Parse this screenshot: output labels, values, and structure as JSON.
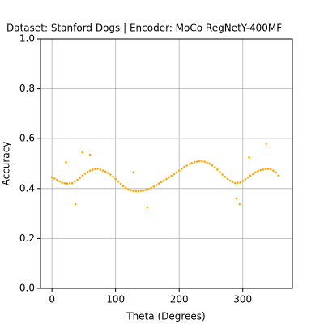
{
  "chart_data": {
    "type": "scatter",
    "title": "Dataset: Stanford Dogs | Encoder: MoCo RegNetY-400MF",
    "x_label": "Theta (Degrees)",
    "y_label": "Accuracy",
    "xlim": [
      -18,
      378
    ],
    "ylim": [
      0,
      1
    ],
    "xticks": [
      0,
      100,
      200,
      300
    ],
    "yticks": [
      {
        "value": 0,
        "label": "0.0"
      },
      {
        "value": 0.2,
        "label": "0.2"
      },
      {
        "value": 0.4,
        "label": "0.4"
      },
      {
        "value": 0.6,
        "label": "0.6"
      },
      {
        "value": 0.8,
        "label": "0.8"
      },
      {
        "value": 1,
        "label": "1.0"
      }
    ],
    "grid": true,
    "series": [
      {
        "color": "#ffa500",
        "x": [
          0,
          4,
          8,
          12,
          16,
          20,
          24,
          28,
          32,
          36,
          40,
          44,
          48,
          52,
          56,
          60,
          64,
          68,
          72,
          76,
          80,
          84,
          88,
          92,
          96,
          100,
          104,
          108,
          112,
          116,
          120,
          124,
          128,
          132,
          136,
          140,
          144,
          148,
          152,
          156,
          160,
          164,
          168,
          172,
          176,
          180,
          184,
          188,
          192,
          196,
          200,
          204,
          208,
          212,
          216,
          220,
          224,
          228,
          232,
          236,
          240,
          244,
          248,
          252,
          256,
          260,
          264,
          268,
          272,
          276,
          280,
          284,
          288,
          292,
          296,
          300,
          304,
          308,
          312,
          316,
          320,
          324,
          328,
          332,
          336,
          340,
          344,
          348,
          352,
          356,
          22,
          37,
          48,
          60,
          128,
          150,
          290,
          295,
          310,
          337
        ],
        "values": [
          0.445,
          0.44,
          0.435,
          0.429,
          0.423,
          0.421,
          0.42,
          0.421,
          0.422,
          0.428,
          0.435,
          0.443,
          0.452,
          0.46,
          0.467,
          0.472,
          0.476,
          0.478,
          0.48,
          0.476,
          0.472,
          0.468,
          0.463,
          0.456,
          0.448,
          0.438,
          0.428,
          0.419,
          0.41,
          0.403,
          0.397,
          0.393,
          0.39,
          0.39,
          0.39,
          0.391,
          0.392,
          0.395,
          0.398,
          0.403,
          0.408,
          0.414,
          0.42,
          0.426,
          0.432,
          0.438,
          0.445,
          0.451,
          0.458,
          0.465,
          0.472,
          0.479,
          0.486,
          0.492,
          0.498,
          0.502,
          0.506,
          0.508,
          0.51,
          0.509,
          0.508,
          0.504,
          0.5,
          0.493,
          0.485,
          0.476,
          0.466,
          0.456,
          0.447,
          0.439,
          0.432,
          0.427,
          0.422,
          0.423,
          0.424,
          0.43,
          0.437,
          0.444,
          0.452,
          0.458,
          0.465,
          0.47,
          0.474,
          0.476,
          0.478,
          0.478,
          0.477,
          0.472,
          0.465,
          0.452,
          0.505,
          0.338,
          0.545,
          0.535,
          0.465,
          0.325,
          0.36,
          0.338,
          0.525,
          0.58
        ]
      }
    ]
  }
}
